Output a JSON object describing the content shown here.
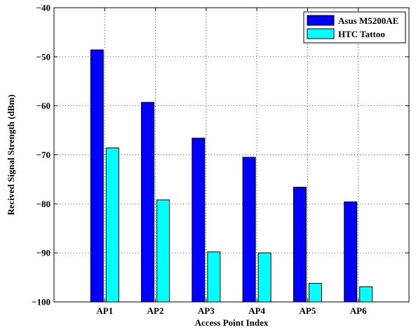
{
  "chart_data": {
    "type": "bar",
    "title": "",
    "xlabel": "Access Point Index",
    "ylabel": "Recived Signal Strength (dBm)",
    "categories": [
      "AP1",
      "AP2",
      "AP3",
      "AP4",
      "AP5",
      "AP6"
    ],
    "ylim": [
      -100,
      -40
    ],
    "yticks": [
      -40,
      -50,
      -60,
      -70,
      -80,
      -90,
      -100
    ],
    "grid": true,
    "legend_position": "top-right",
    "series": [
      {
        "name": "Asus M5200AE",
        "color": "#0000ff",
        "values": [
          -48.6,
          -59.3,
          -66.6,
          -70.5,
          -76.6,
          -79.6
        ]
      },
      {
        "name": "HTC Tattoo",
        "color": "#00ffff",
        "values": [
          -68.6,
          -79.2,
          -89.8,
          -90.0,
          -96.2,
          -96.9
        ]
      }
    ]
  }
}
